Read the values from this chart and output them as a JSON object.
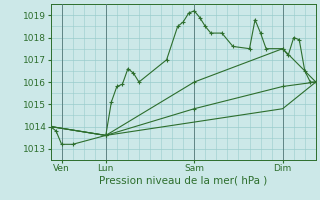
{
  "background_color": "#cce8e8",
  "grid_color": "#99cccc",
  "line_color": "#2d6e2d",
  "marker_color": "#2d6e2d",
  "title": "Pression niveau de la mer( hPa )",
  "xlim": [
    0,
    96
  ],
  "ylim": [
    1012.5,
    1019.5
  ],
  "yticks": [
    1013,
    1014,
    1015,
    1016,
    1017,
    1018,
    1019
  ],
  "xtick_positions": [
    4,
    20,
    52,
    84
  ],
  "xtick_labels": [
    "Ven",
    "Lun",
    "Sam",
    "Dim"
  ],
  "vlines": [
    4,
    20,
    52,
    84
  ],
  "series1_x": [
    0,
    2,
    4,
    8,
    20,
    22,
    24,
    26,
    28,
    30,
    32,
    42,
    46,
    48,
    50,
    52,
    54,
    56,
    58,
    62,
    66,
    72,
    74,
    76,
    78,
    84,
    86,
    88,
    90,
    92,
    94,
    96
  ],
  "series1_y": [
    1014.0,
    1013.8,
    1013.2,
    1013.2,
    1013.6,
    1015.1,
    1015.8,
    1015.9,
    1016.6,
    1016.4,
    1016.0,
    1017.0,
    1018.5,
    1018.7,
    1019.1,
    1019.2,
    1018.9,
    1018.5,
    1018.2,
    1018.2,
    1017.6,
    1017.5,
    1018.8,
    1018.2,
    1017.5,
    1017.5,
    1017.2,
    1018.0,
    1017.9,
    1016.5,
    1016.0,
    1016.0
  ],
  "series2_x": [
    0,
    20,
    52,
    84,
    96
  ],
  "series2_y": [
    1014.0,
    1013.6,
    1016.0,
    1017.5,
    1016.0
  ],
  "series3_x": [
    0,
    20,
    52,
    84,
    96
  ],
  "series3_y": [
    1014.0,
    1013.6,
    1014.8,
    1015.8,
    1016.0
  ],
  "series4_x": [
    0,
    20,
    52,
    84,
    96
  ],
  "series4_y": [
    1014.0,
    1013.6,
    1014.2,
    1014.8,
    1016.0
  ]
}
